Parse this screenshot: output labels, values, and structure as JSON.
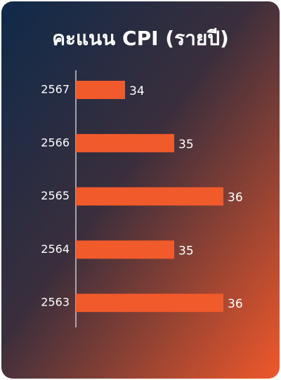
{
  "chart_data": {
    "type": "barh",
    "title": "คะแนน CPI (รายปี)",
    "categories": [
      "2567",
      "2566",
      "2565",
      "2564",
      "2563"
    ],
    "values": [
      34,
      35,
      36,
      35,
      36
    ],
    "color": "#f15a2b",
    "xlim": [
      33,
      36
    ]
  }
}
